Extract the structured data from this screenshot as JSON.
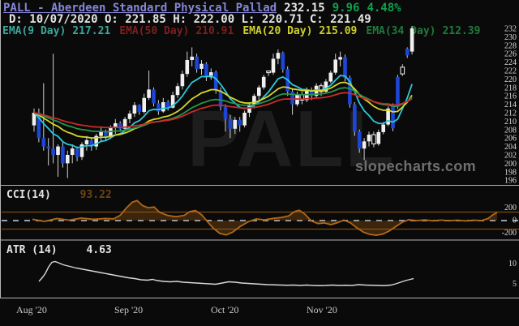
{
  "header": {
    "title": "PALL - Aberdeen Standard Physical Pallad",
    "last_price": "232.15",
    "change": "9.96",
    "change_pct": "4.48%",
    "ohlc_line": "D: 10/07/2020 O: 221.85 H: 222.00 L: 220.71 C: 221.49",
    "colors": {
      "title": "#8585d6",
      "price": "#e8e8e8",
      "change": "#0fa04c"
    },
    "emas": [
      {
        "label": "EMA(9 Day)",
        "value": "217.21",
        "color": "#3aa79a"
      },
      {
        "label": "EMA(50 Day)",
        "value": "210.91",
        "color": "#7d1f1f"
      },
      {
        "label": "EMA(20 Day)",
        "value": "215.09",
        "color": "#cfcf2a"
      },
      {
        "label": "EMA(34 Day)",
        "value": "212.39",
        "color": "#1f7a3c"
      }
    ]
  },
  "watermarks": {
    "symbol": "PALL",
    "site": "slopecharts.com"
  },
  "x_axis": {
    "labels": [
      "Aug '20",
      "Sep '20",
      "Oct '20",
      "Nov '20"
    ],
    "positions": [
      20,
      141,
      260,
      378
    ]
  },
  "chart_data": [
    {
      "type": "candlestick",
      "name": "PALL daily price",
      "ylim": [
        195.5,
        233
      ],
      "y_ticks": [
        232,
        230,
        228,
        226,
        224,
        222,
        220,
        218,
        216,
        214,
        212,
        210,
        208,
        206,
        204,
        202,
        200,
        198,
        196
      ],
      "up_color": "#f0f0f0",
      "down_color": "#1b46d6",
      "wick_color": "#cfcfcf",
      "ema_overlays": [
        {
          "period": 9,
          "color": "#2cc8dc"
        },
        {
          "period": 20,
          "color": "#d6d62a"
        },
        {
          "period": 34,
          "color": "#28944a"
        },
        {
          "period": 50,
          "color": "#cc2a2a"
        }
      ],
      "hollow_indices": [
        49,
        56,
        60,
        71,
        77
      ],
      "candles": [
        [
          209.0,
          213.0,
          207.5,
          212.0
        ],
        [
          212.0,
          213.0,
          205.0,
          206.0
        ],
        [
          206.0,
          219.0,
          203.0,
          204.0
        ],
        [
          204.0,
          206.0,
          199.5,
          203.5
        ],
        [
          203.5,
          226.0,
          200.0,
          202.0
        ],
        [
          202.0,
          204.5,
          196.8,
          204.0
        ],
        [
          204.0,
          205.0,
          199.0,
          200.0
        ],
        [
          200.0,
          203.0,
          196.5,
          202.0
        ],
        [
          202.0,
          204.5,
          200.0,
          203.5
        ],
        [
          203.5,
          204.0,
          200.5,
          201.5
        ],
        [
          201.5,
          205.0,
          200.8,
          204.5
        ],
        [
          204.5,
          206.5,
          203.0,
          205.5
        ],
        [
          205.5,
          206.0,
          203.0,
          204.0
        ],
        [
          204.0,
          207.0,
          203.2,
          206.5
        ],
        [
          206.5,
          208.5,
          205.0,
          207.5
        ],
        [
          207.5,
          208.0,
          205.5,
          206.2
        ],
        [
          206.2,
          209.0,
          205.8,
          208.5
        ],
        [
          208.5,
          210.5,
          207.0,
          209.5
        ],
        [
          209.5,
          210.0,
          207.5,
          208.2
        ],
        [
          208.2,
          211.0,
          207.8,
          210.5
        ],
        [
          210.5,
          212.5,
          209.5,
          211.8
        ],
        [
          211.8,
          214.5,
          211.0,
          213.8
        ],
        [
          213.8,
          214.0,
          211.5,
          212.2
        ],
        [
          212.2,
          216.5,
          211.8,
          215.5
        ],
        [
          215.5,
          222.0,
          215.0,
          217.5
        ],
        [
          217.5,
          218.0,
          213.5,
          214.2
        ],
        [
          214.2,
          215.0,
          211.5,
          212.3
        ],
        [
          212.3,
          215.5,
          212.0,
          214.5
        ],
        [
          214.5,
          215.0,
          212.5,
          213.2
        ],
        [
          213.2,
          217.0,
          213.0,
          216.2
        ],
        [
          216.2,
          219.0,
          215.5,
          218.3
        ],
        [
          218.3,
          222.0,
          217.5,
          221.2
        ],
        [
          221.2,
          226.5,
          220.5,
          224.5
        ],
        [
          224.5,
          227.5,
          223.0,
          225.3
        ],
        [
          225.3,
          226.0,
          221.5,
          222.4
        ],
        [
          222.4,
          224.5,
          221.0,
          223.6
        ],
        [
          223.6,
          224.0,
          219.5,
          220.4
        ],
        [
          220.4,
          222.5,
          219.8,
          221.6
        ],
        [
          221.6,
          222.0,
          216.5,
          217.3
        ],
        [
          217.3,
          218.0,
          212.5,
          213.4
        ],
        [
          213.4,
          214.0,
          207.5,
          210.5
        ],
        [
          210.5,
          211.5,
          206.0,
          208.2
        ],
        [
          208.2,
          211.0,
          207.0,
          210.3
        ],
        [
          210.3,
          211.0,
          207.5,
          209.0
        ],
        [
          209.0,
          212.5,
          208.5,
          212.0
        ],
        [
          212.0,
          214.5,
          211.0,
          214.0
        ],
        [
          214.0,
          216.5,
          213.0,
          216.0
        ],
        [
          216.0,
          218.5,
          215.0,
          218.0
        ],
        [
          218.0,
          221.0,
          217.5,
          220.5
        ],
        [
          221.9,
          222.0,
          220.7,
          221.5
        ],
        [
          221.5,
          226.0,
          221.0,
          224.8
        ],
        [
          224.8,
          227.0,
          223.5,
          226.2
        ],
        [
          226.2,
          226.5,
          221.5,
          222.3
        ],
        [
          222.3,
          223.0,
          216.0,
          217.0
        ],
        [
          217.0,
          217.5,
          211.5,
          214.0
        ],
        [
          214.0,
          217.0,
          213.5,
          216.3
        ],
        [
          216.3,
          217.0,
          214.0,
          215.0
        ],
        [
          215.0,
          218.0,
          214.5,
          217.3
        ],
        [
          217.3,
          218.0,
          215.0,
          216.0
        ],
        [
          216.0,
          219.0,
          215.5,
          218.4
        ],
        [
          218.4,
          219.0,
          216.0,
          217.0
        ],
        [
          217.0,
          220.0,
          216.5,
          219.4
        ],
        [
          219.4,
          222.0,
          219.0,
          221.5
        ],
        [
          221.5,
          226.0,
          221.0,
          224.6
        ],
        [
          224.6,
          226.5,
          223.0,
          225.2
        ],
        [
          225.2,
          225.8,
          219.5,
          220.3
        ],
        [
          220.3,
          220.8,
          213.2,
          214.0
        ],
        [
          214.0,
          214.5,
          206.5,
          207.5
        ],
        [
          207.5,
          208.0,
          202.5,
          203.5
        ],
        [
          203.5,
          206.0,
          200.8,
          205.2
        ],
        [
          205.2,
          207.5,
          204.0,
          206.8
        ],
        [
          206.8,
          207.5,
          203.8,
          204.6
        ],
        [
          204.6,
          208.0,
          204.2,
          207.4
        ],
        [
          207.4,
          209.8,
          206.9,
          209.2
        ],
        [
          209.2,
          213.5,
          208.8,
          213.0
        ],
        [
          213.7,
          214.2,
          207.6,
          208.3
        ],
        [
          220.5,
          221.0,
          212.9,
          213.4
        ],
        [
          221.2,
          223.5,
          220.7,
          222.8
        ],
        [
          227.2,
          227.5,
          225.0,
          225.6
        ],
        [
          226.5,
          232.5,
          225.8,
          232.0
        ]
      ]
    },
    {
      "type": "line",
      "name": "CCI(14)",
      "value_label": "93.22",
      "y_ticks": [
        200,
        0,
        -200
      ],
      "ref_lines": [
        100,
        -100
      ],
      "zero_line_dashed": true,
      "color": "#b06818",
      "value_color": "#6e4410",
      "points": [
        [
          40,
          15
        ],
        [
          55,
          -10
        ],
        [
          70,
          25
        ],
        [
          85,
          5
        ],
        [
          100,
          30
        ],
        [
          115,
          15
        ],
        [
          130,
          25
        ],
        [
          140,
          20
        ],
        [
          148,
          60
        ],
        [
          156,
          150
        ],
        [
          163,
          215
        ],
        [
          169,
          235
        ],
        [
          176,
          175
        ],
        [
          183,
          150
        ],
        [
          190,
          160
        ],
        [
          197,
          95
        ],
        [
          207,
          60
        ],
        [
          217,
          45
        ],
        [
          227,
          60
        ],
        [
          234,
          105
        ],
        [
          241,
          118
        ],
        [
          249,
          65
        ],
        [
          256,
          -15
        ],
        [
          263,
          -90
        ],
        [
          271,
          -150
        ],
        [
          279,
          -168
        ],
        [
          287,
          -135
        ],
        [
          296,
          -70
        ],
        [
          306,
          -15
        ],
        [
          316,
          20
        ],
        [
          326,
          8
        ],
        [
          336,
          25
        ],
        [
          346,
          35
        ],
        [
          356,
          55
        ],
        [
          363,
          105
        ],
        [
          369,
          122
        ],
        [
          376,
          75
        ],
        [
          384,
          -5
        ],
        [
          392,
          -35
        ],
        [
          400,
          -28
        ],
        [
          408,
          -48
        ],
        [
          416,
          -25
        ],
        [
          424,
          5
        ],
        [
          432,
          -25
        ],
        [
          440,
          -85
        ],
        [
          448,
          -135
        ],
        [
          456,
          -162
        ],
        [
          464,
          -172
        ],
        [
          472,
          -158
        ],
        [
          480,
          -122
        ],
        [
          488,
          -70
        ],
        [
          496,
          -20
        ],
        [
          504,
          10
        ],
        [
          514,
          0
        ],
        [
          524,
          8
        ],
        [
          534,
          -3
        ],
        [
          544,
          6
        ],
        [
          554,
          -2
        ],
        [
          564,
          5
        ],
        [
          574,
          -4
        ],
        [
          584,
          4
        ],
        [
          594,
          0
        ],
        [
          602,
          25
        ],
        [
          608,
          70
        ],
        [
          613,
          93
        ]
      ]
    },
    {
      "type": "line",
      "name": "ATR (14)",
      "value_label": "4.63",
      "y_ticks": [
        10,
        5
      ],
      "color": "#d8d8d8",
      "points": [
        [
          48,
          5.6
        ],
        [
          52,
          6.5
        ],
        [
          56,
          7.6
        ],
        [
          60,
          9.2
        ],
        [
          64,
          10.3
        ],
        [
          68,
          10.5
        ],
        [
          72,
          10.2
        ],
        [
          78,
          9.7
        ],
        [
          86,
          9.3
        ],
        [
          94,
          8.9
        ],
        [
          102,
          8.6
        ],
        [
          110,
          8.3
        ],
        [
          118,
          8.0
        ],
        [
          126,
          7.7
        ],
        [
          134,
          7.4
        ],
        [
          142,
          7.1
        ],
        [
          150,
          6.8
        ],
        [
          158,
          6.5
        ],
        [
          166,
          6.3
        ],
        [
          174,
          6.0
        ],
        [
          182,
          5.9
        ],
        [
          188,
          6.1
        ],
        [
          194,
          5.8
        ],
        [
          202,
          5.6
        ],
        [
          210,
          5.5
        ],
        [
          218,
          5.6
        ],
        [
          226,
          5.4
        ],
        [
          234,
          5.3
        ],
        [
          242,
          5.2
        ],
        [
          250,
          5.1
        ],
        [
          258,
          5.0
        ],
        [
          266,
          4.9
        ],
        [
          274,
          5.2
        ],
        [
          282,
          5.5
        ],
        [
          290,
          5.4
        ],
        [
          298,
          5.2
        ],
        [
          306,
          5.1
        ],
        [
          314,
          5.0
        ],
        [
          322,
          4.9
        ],
        [
          330,
          4.8
        ],
        [
          338,
          4.75
        ],
        [
          346,
          4.7
        ],
        [
          354,
          4.65
        ],
        [
          362,
          4.7
        ],
        [
          370,
          4.6
        ],
        [
          378,
          4.7
        ],
        [
          386,
          4.6
        ],
        [
          394,
          4.55
        ],
        [
          402,
          4.6
        ],
        [
          410,
          4.7
        ],
        [
          418,
          4.6
        ],
        [
          426,
          4.65
        ],
        [
          434,
          4.6
        ],
        [
          442,
          4.8
        ],
        [
          450,
          4.7
        ],
        [
          458,
          4.65
        ],
        [
          466,
          4.6
        ],
        [
          474,
          4.55
        ],
        [
          482,
          4.7
        ],
        [
          488,
          5.0
        ],
        [
          494,
          5.4
        ],
        [
          500,
          5.8
        ],
        [
          506,
          6.1
        ],
        [
          510,
          6.3
        ]
      ]
    }
  ]
}
